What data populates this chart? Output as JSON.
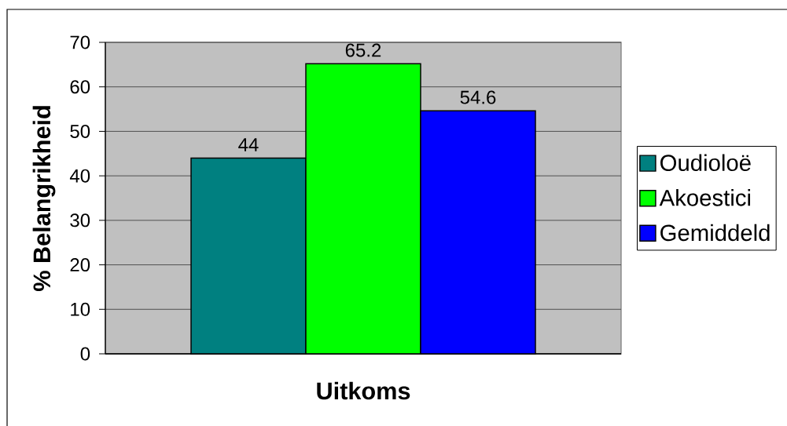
{
  "chart_data": {
    "type": "bar",
    "xlabel": "Uitkoms",
    "ylabel": "% Belangrikheid",
    "categories": [
      null
    ],
    "series": [
      {
        "name": "Oudioloë",
        "color": "#008080",
        "values": [
          44
        ]
      },
      {
        "name": "Akoestici",
        "color": "#00ff00",
        "values": [
          65.2
        ]
      },
      {
        "name": "Gemiddeld",
        "color": "#0000ff",
        "values": [
          54.6
        ]
      }
    ],
    "ylim": [
      0,
      70
    ],
    "yticks": [
      0,
      10,
      20,
      30,
      40,
      50,
      60,
      70
    ],
    "grid": "y",
    "legend": "right",
    "data_labels": true
  }
}
